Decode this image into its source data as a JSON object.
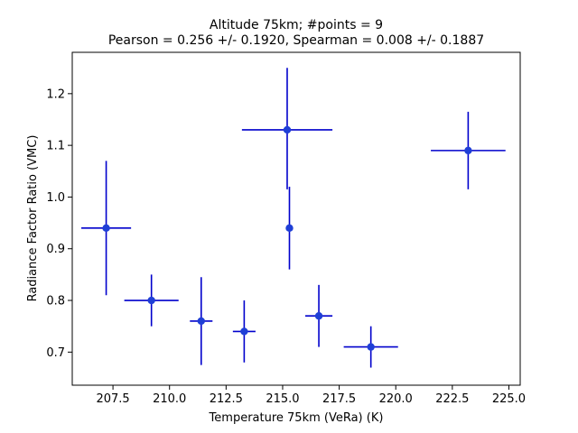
{
  "chart_data": {
    "type": "scatter",
    "title_line1": "Altitude 75km;  #points =  9",
    "title_line2": "Pearson =  0.256 +/-  0.1920, Spearman =  0.008 +/-  0.1887",
    "xlabel": "Temperature 75km (VeRa) (K)",
    "ylabel": "Radiance Factor Ratio (VMC)",
    "xlim": [
      205.7,
      225.5
    ],
    "ylim": [
      0.636,
      1.28
    ],
    "xticks": [
      "207.5",
      "210.0",
      "212.5",
      "215.0",
      "217.5",
      "220.0",
      "222.5",
      "225.0"
    ],
    "xtick_values": [
      207.5,
      210.0,
      212.5,
      215.0,
      217.5,
      220.0,
      222.5,
      225.0
    ],
    "yticks": [
      "0.7",
      "0.8",
      "0.9",
      "1.0",
      "1.1",
      "1.2"
    ],
    "ytick_values": [
      0.7,
      0.8,
      0.9,
      1.0,
      1.1,
      1.2
    ],
    "grid": false,
    "color": "#0000cc",
    "marker_color": "#1f3fd6",
    "points": [
      {
        "x": 207.2,
        "y": 0.94,
        "xerr": 1.1,
        "yerr_low": 0.13,
        "yerr_high": 0.13
      },
      {
        "x": 209.2,
        "y": 0.8,
        "xerr": 1.2,
        "yerr_low": 0.05,
        "yerr_high": 0.05
      },
      {
        "x": 211.4,
        "y": 0.76,
        "xerr": 0.5,
        "yerr_low": 0.085,
        "yerr_high": 0.085
      },
      {
        "x": 213.3,
        "y": 0.74,
        "xerr": 0.5,
        "yerr_low": 0.06,
        "yerr_high": 0.06
      },
      {
        "x": 215.2,
        "y": 1.13,
        "xerr": 2.0,
        "yerr_low": 0.115,
        "yerr_high": 0.12
      },
      {
        "x": 215.3,
        "y": 0.94,
        "xerr": 0.15,
        "yerr_low": 0.08,
        "yerr_high": 0.08
      },
      {
        "x": 216.6,
        "y": 0.77,
        "xerr": 0.6,
        "yerr_low": 0.06,
        "yerr_high": 0.06
      },
      {
        "x": 218.9,
        "y": 0.71,
        "xerr": 1.2,
        "yerr_low": 0.04,
        "yerr_high": 0.04
      },
      {
        "x": 223.2,
        "y": 1.09,
        "xerr": 1.65,
        "yerr_low": 0.075,
        "yerr_high": 0.075
      }
    ]
  }
}
